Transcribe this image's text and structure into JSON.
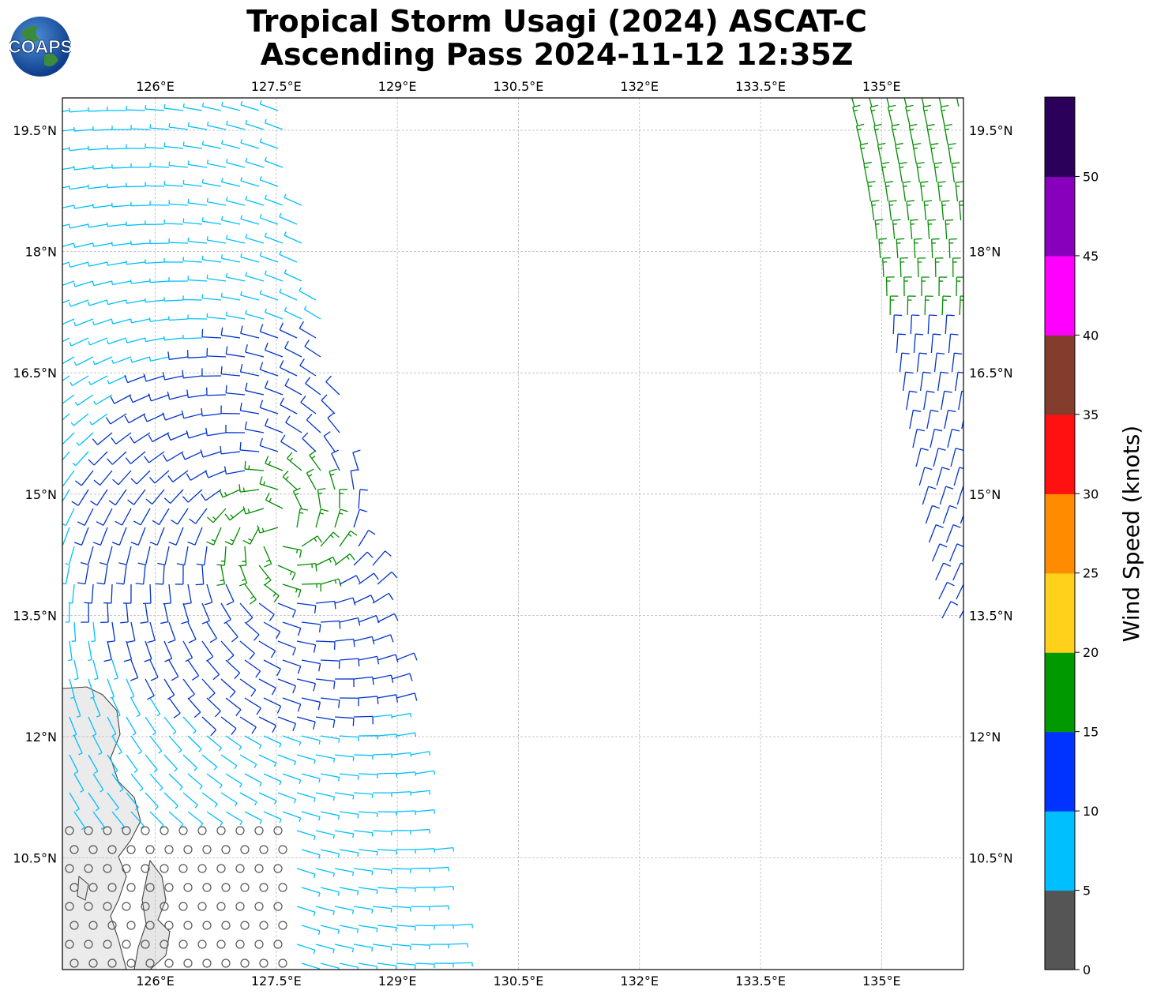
{
  "title": {
    "line1": "Tropical Storm Usagi (2024) ASCAT-C",
    "line2": "Ascending Pass 2024-11-12 12:35Z"
  },
  "logo": {
    "text": "COAPS",
    "icon": "globe-icon"
  },
  "map": {
    "lon_range": [
      124.85,
      136.0
    ],
    "lat_range": [
      8.3,
      19.1
    ],
    "lon_ticks": [
      "126°E",
      "127.5°E",
      "129°E",
      "130.5°E",
      "132°E",
      "133.5°E",
      "135°E"
    ],
    "lat_ticks": [
      "19.5°N",
      "18°N",
      "16.5°N",
      "15°N",
      "13.5°N",
      "12°N",
      "10.5°N"
    ],
    "grid": true,
    "swaths": "two ASCAT swaths: west swath ~125–130.5°E, east swath ~134.5–136°E",
    "barb_colors": {
      "calm": "#555555",
      "5-10": "#00bfff",
      "10-15": "#0033cc",
      "15-20": "#008c00",
      "20-25": "#ffd000"
    }
  },
  "colorbar": {
    "label": "Wind Speed (knots)",
    "bins": [
      {
        "from": 0,
        "to": 5,
        "color": "#555555"
      },
      {
        "from": 5,
        "to": 10,
        "color": "#00bfff"
      },
      {
        "from": 10,
        "to": 15,
        "color": "#0033ff"
      },
      {
        "from": 15,
        "to": 20,
        "color": "#009900"
      },
      {
        "from": 20,
        "to": 25,
        "color": "#ffd11a"
      },
      {
        "from": 25,
        "to": 30,
        "color": "#ff8c00"
      },
      {
        "from": 30,
        "to": 35,
        "color": "#ff1111"
      },
      {
        "from": 35,
        "to": 40,
        "color": "#843c2c"
      },
      {
        "from": 40,
        "to": 45,
        "color": "#ff00ff"
      },
      {
        "from": 45,
        "to": 50,
        "color": "#8800bb"
      },
      {
        "from": 50,
        "to": 55,
        "color": "#2a005a"
      }
    ],
    "tick_labels": [
      "0",
      "5",
      "10",
      "15",
      "20",
      "25",
      "30",
      "35",
      "40",
      "45",
      "50"
    ]
  }
}
